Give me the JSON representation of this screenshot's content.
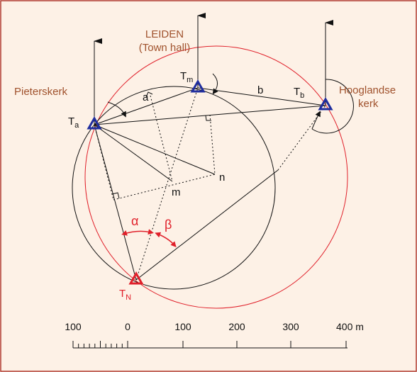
{
  "labels": {
    "leiden": "LEIDEN",
    "town_hall": "(Town hall)",
    "pieterskerk": "Pieterskerk",
    "hooglandse": "Hooglandse",
    "kerk": "kerk",
    "a": "a",
    "b": "b",
    "m": "m",
    "n": "n",
    "alpha": "α",
    "beta": "β"
  },
  "stations": {
    "Ta": {
      "main": "T",
      "sub": "a"
    },
    "Tm": {
      "main": "T",
      "sub": "m"
    },
    "Tb": {
      "main": "T",
      "sub": "b"
    },
    "TN": {
      "main": "T",
      "sub": "N"
    }
  },
  "scale": {
    "labels": [
      "100",
      "0",
      "100",
      "200",
      "300",
      "400 m"
    ]
  }
}
